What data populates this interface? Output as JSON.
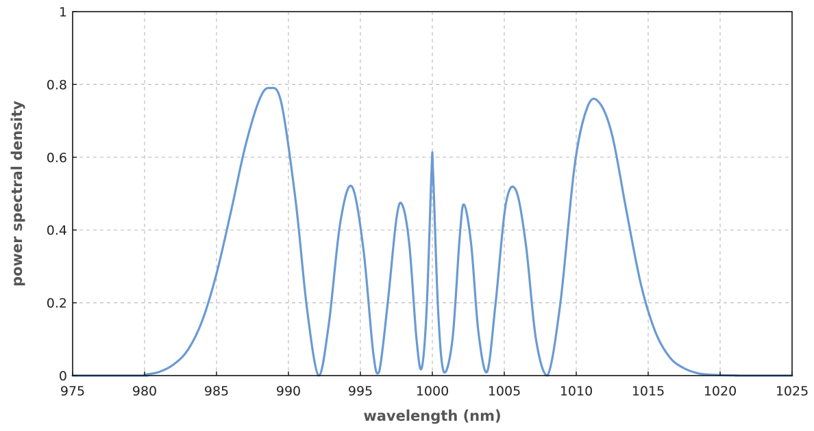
{
  "chart_data": {
    "type": "line",
    "title": "",
    "xlabel": "wavelength (nm)",
    "ylabel": "power spectral density",
    "xlim": [
      975,
      1025
    ],
    "ylim": [
      0,
      1
    ],
    "x_ticks": [
      "975",
      "980",
      "985",
      "990",
      "995",
      "1000",
      "1005",
      "1010",
      "1015",
      "1020",
      "1025"
    ],
    "y_ticks": [
      "0",
      "0.2",
      "0.4",
      "0.6",
      "0.8",
      "1"
    ],
    "grid": true,
    "line_color": "#6a9ad3",
    "series": [
      {
        "x": [
          975,
          979.9,
          980,
          981,
          982,
          983,
          984,
          985,
          986,
          987,
          988,
          988.7,
          989.5,
          990.5,
          991.3,
          992.1,
          992.8,
          993.6,
          994.4,
          995.2,
          995.9,
          996.3,
          996.9,
          997.5,
          997.9,
          998.4,
          998.9,
          999.25,
          999.6,
          999.95,
          1000.05,
          1000.4,
          1000.8,
          1001.4,
          1001.9,
          1002.2,
          1002.7,
          1003.2,
          1003.8,
          1004.4,
          1005.1,
          1005.8,
          1006.5,
          1007.2,
          1008.0,
          1008.9,
          1009.9,
          1010.8,
          1011.6,
          1012.5,
          1013.5,
          1014.5,
          1015.5,
          1016.5,
          1017.5,
          1018.5,
          1019.5,
          1020.5,
          1021.2,
          1021.3,
          1025
        ],
        "y": [
          0,
          0,
          0.002,
          0.01,
          0.03,
          0.07,
          0.15,
          0.28,
          0.45,
          0.63,
          0.76,
          0.79,
          0.75,
          0.48,
          0.18,
          0,
          0.14,
          0.42,
          0.52,
          0.35,
          0.06,
          0.01,
          0.2,
          0.43,
          0.47,
          0.36,
          0.1,
          0.02,
          0.18,
          0.57,
          0.56,
          0.18,
          0.01,
          0.1,
          0.38,
          0.47,
          0.36,
          0.12,
          0.01,
          0.2,
          0.47,
          0.51,
          0.36,
          0.1,
          0,
          0.2,
          0.58,
          0.74,
          0.75,
          0.66,
          0.45,
          0.25,
          0.12,
          0.05,
          0.02,
          0.006,
          0.002,
          0.001,
          0.0005,
          0,
          0
        ]
      }
    ]
  }
}
